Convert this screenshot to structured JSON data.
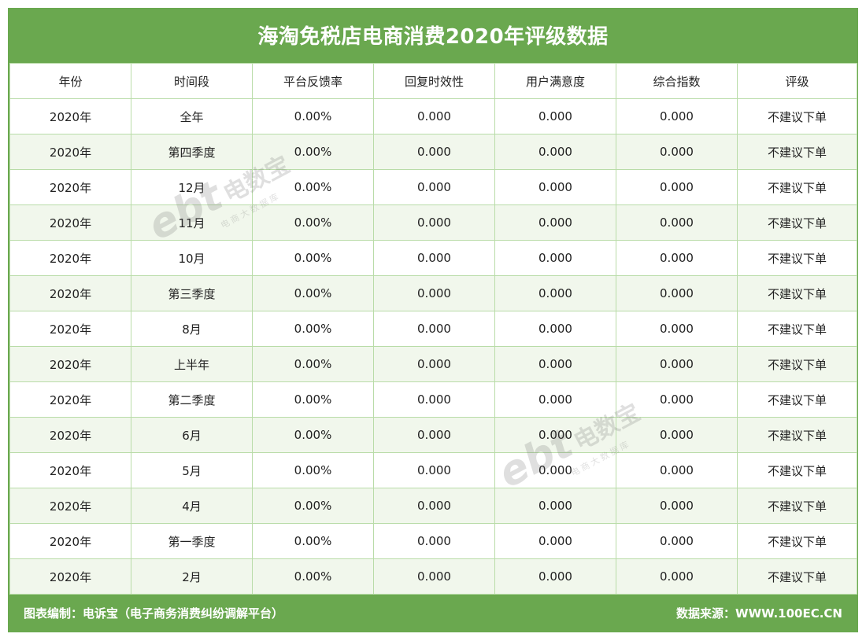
{
  "title": "海淘免税店电商消费2020年评级数据",
  "chart_data": {
    "type": "table",
    "title": "海淘免税店电商消费2020年评级数据",
    "columns": [
      "年份",
      "时间段",
      "平台反馈率",
      "回复时效性",
      "用户满意度",
      "综合指数",
      "评级"
    ],
    "rows": [
      [
        "2020年",
        "全年",
        "0.00%",
        "0.000",
        "0.000",
        "0.000",
        "不建议下单"
      ],
      [
        "2020年",
        "第四季度",
        "0.00%",
        "0.000",
        "0.000",
        "0.000",
        "不建议下单"
      ],
      [
        "2020年",
        "12月",
        "0.00%",
        "0.000",
        "0.000",
        "0.000",
        "不建议下单"
      ],
      [
        "2020年",
        "11月",
        "0.00%",
        "0.000",
        "0.000",
        "0.000",
        "不建议下单"
      ],
      [
        "2020年",
        "10月",
        "0.00%",
        "0.000",
        "0.000",
        "0.000",
        "不建议下单"
      ],
      [
        "2020年",
        "第三季度",
        "0.00%",
        "0.000",
        "0.000",
        "0.000",
        "不建议下单"
      ],
      [
        "2020年",
        "8月",
        "0.00%",
        "0.000",
        "0.000",
        "0.000",
        "不建议下单"
      ],
      [
        "2020年",
        "上半年",
        "0.00%",
        "0.000",
        "0.000",
        "0.000",
        "不建议下单"
      ],
      [
        "2020年",
        "第二季度",
        "0.00%",
        "0.000",
        "0.000",
        "0.000",
        "不建议下单"
      ],
      [
        "2020年",
        "6月",
        "0.00%",
        "0.000",
        "0.000",
        "0.000",
        "不建议下单"
      ],
      [
        "2020年",
        "5月",
        "0.00%",
        "0.000",
        "0.000",
        "0.000",
        "不建议下单"
      ],
      [
        "2020年",
        "4月",
        "0.00%",
        "0.000",
        "0.000",
        "0.000",
        "不建议下单"
      ],
      [
        "2020年",
        "第一季度",
        "0.00%",
        "0.000",
        "0.000",
        "0.000",
        "不建议下单"
      ],
      [
        "2020年",
        "2月",
        "0.00%",
        "0.000",
        "0.000",
        "0.000",
        "不建议下单"
      ]
    ]
  },
  "footer": {
    "left": "图表编制：电诉宝（电子商务消费纠纷调解平台）",
    "right": "数据来源：WWW.100EC.CN"
  },
  "watermark": {
    "logo": "ebt",
    "brand": "电数宝",
    "sub": "电商大数据库"
  },
  "colors": {
    "frame": "#6aa84f",
    "grid_line": "#b9dca8",
    "alt_row": "#f1f7ec"
  }
}
